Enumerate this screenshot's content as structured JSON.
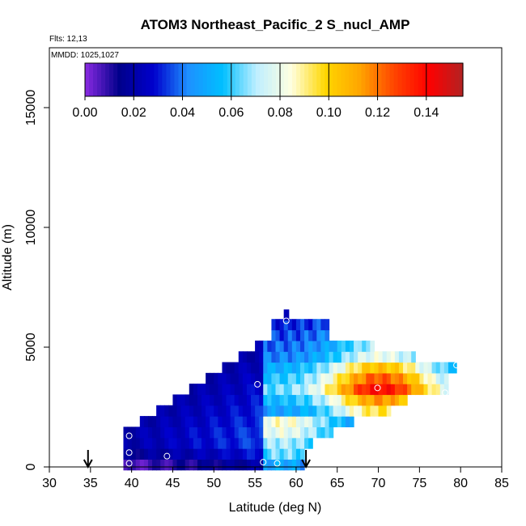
{
  "chart_data": {
    "type": "heatmap",
    "title": "ATOM3 Northeast_Pacific_2 S_nucl_AMP",
    "flights_label": "Flts: 12,13",
    "mmdd_label": "MMDD: 1025,1027",
    "xlabel": "Latitude (deg N)",
    "ylabel": "Altitude (m)",
    "xlim": [
      30,
      85
    ],
    "ylim": [
      0,
      17500
    ],
    "x_ticks": [
      "30",
      "35",
      "40",
      "45",
      "50",
      "55",
      "60",
      "65",
      "70",
      "75",
      "80",
      "85"
    ],
    "y_ticks": [
      "0",
      "5000",
      "10000",
      "15000"
    ],
    "colorbar": {
      "range": [
        0,
        0.155
      ],
      "tick_labels": [
        "0.00",
        "0.02",
        "0.04",
        "0.06",
        "0.08",
        "0.10",
        "0.12",
        "0.14"
      ],
      "colors": [
        "#8a2be2",
        "#00008b",
        "#0000cd",
        "#1e90ff",
        "#00bfff",
        "#bfefff",
        "#ffffe0",
        "#ffd700",
        "#ffa500",
        "#ff4500",
        "#ff0000",
        "#b22222"
      ]
    },
    "arrow_latitudes": [
      34.7,
      61.2
    ],
    "profile_points": [
      {
        "lat": 39.7,
        "alt": 1300
      },
      {
        "lat": 39.7,
        "alt": 600
      },
      {
        "lat": 39.7,
        "alt": 150
      },
      {
        "lat": 44.3,
        "alt": 450
      },
      {
        "lat": 55.3,
        "alt": 3450
      },
      {
        "lat": 56.0,
        "alt": 200
      },
      {
        "lat": 57.7,
        "alt": 150
      },
      {
        "lat": 58.8,
        "alt": 6100
      },
      {
        "lat": 69.9,
        "alt": 3300
      },
      {
        "lat": 78.1,
        "alt": 3100
      },
      {
        "lat": 79.5,
        "alt": 4250
      }
    ],
    "alt_bin_m": 450,
    "rows": [
      {
        "alt": 100,
        "lat_min": 39.0,
        "lat_max": 61.0,
        "lo": 0.005,
        "hi": 0.05
      },
      {
        "alt": 550,
        "lat_min": 39.0,
        "lat_max": 61.0,
        "lo": 0.015,
        "hi": 0.065
      },
      {
        "alt": 1000,
        "lat_min": 39.0,
        "lat_max": 62.0,
        "lo": 0.02,
        "hi": 0.07
      },
      {
        "alt": 1450,
        "lat_min": 39.0,
        "lat_max": 64.5,
        "lo": 0.02,
        "hi": 0.08
      },
      {
        "alt": 1900,
        "lat_min": 41.0,
        "lat_max": 67.0,
        "lo": 0.02,
        "hi": 0.085
      },
      {
        "alt": 2350,
        "lat_min": 43.0,
        "lat_max": 71.5,
        "lo": 0.02,
        "hi": 0.095
      },
      {
        "alt": 2800,
        "lat_min": 45.0,
        "lat_max": 73.5,
        "lo": 0.02,
        "hi": 0.115
      },
      {
        "alt": 3250,
        "lat_min": 47.0,
        "lat_max": 78.5,
        "lo": 0.02,
        "hi": 0.14
      },
      {
        "alt": 3700,
        "lat_min": 49.0,
        "lat_max": 78.5,
        "lo": 0.02,
        "hi": 0.125
      },
      {
        "alt": 4150,
        "lat_min": 51.0,
        "lat_max": 79.5,
        "lo": 0.02,
        "hi": 0.105
      },
      {
        "alt": 4600,
        "lat_min": 53.0,
        "lat_max": 74.5,
        "lo": 0.02,
        "hi": 0.08
      },
      {
        "alt": 5050,
        "lat_min": 55.0,
        "lat_max": 69.5,
        "lo": 0.02,
        "hi": 0.07
      },
      {
        "alt": 5500,
        "lat_min": 57.0,
        "lat_max": 64.0,
        "lo": 0.02,
        "hi": 0.06
      },
      {
        "alt": 5950,
        "lat_min": 57.0,
        "lat_max": 64.0,
        "lo": 0.02,
        "hi": 0.05
      },
      {
        "alt": 6350,
        "lat_min": 58.5,
        "lat_max": 59.1,
        "lo": 0.02,
        "hi": 0.03
      }
    ]
  }
}
